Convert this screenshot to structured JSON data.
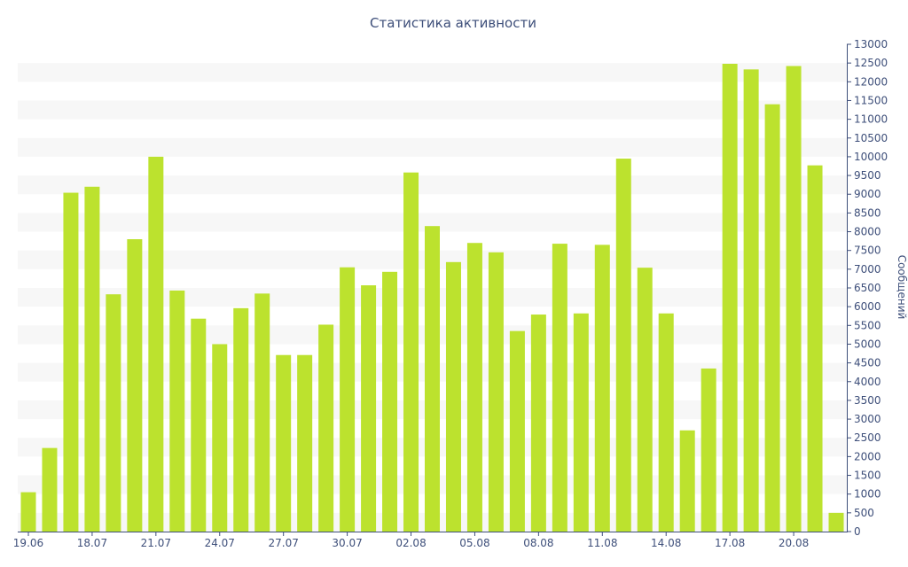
{
  "chart_data": {
    "type": "bar",
    "title": "Статистика активности",
    "ylabel": "Сообщений",
    "ylim": [
      0,
      13000
    ],
    "y_ticks": [
      0,
      500,
      1000,
      1500,
      2000,
      2500,
      3000,
      3500,
      4000,
      4500,
      5000,
      5500,
      6000,
      6500,
      7000,
      7500,
      8000,
      8500,
      9000,
      9500,
      10000,
      10500,
      11000,
      11500,
      12000,
      12500,
      13000
    ],
    "y_axis_position": "right",
    "grid": "horizontal-bands",
    "x_tick_labels": [
      "19.06",
      "18.07",
      "21.07",
      "24.07",
      "27.07",
      "30.07",
      "02.08",
      "05.08",
      "08.08",
      "11.08",
      "14.08",
      "17.08",
      "20.08"
    ],
    "x_tick_bar_index": [
      0,
      3,
      6,
      9,
      12,
      15,
      18,
      21,
      24,
      27,
      30,
      33,
      36
    ],
    "bar_color": "#bce22e",
    "text_color": "#3e4f7a",
    "band_color": "#f7f7f7",
    "values": [
      1050,
      2230,
      9040,
      9200,
      6330,
      7800,
      10000,
      6430,
      5680,
      5000,
      5960,
      6350,
      4710,
      4710,
      5520,
      7050,
      6570,
      6930,
      9580,
      8150,
      7190,
      7700,
      7450,
      5350,
      5790,
      7680,
      5820,
      7650,
      9950,
      7040,
      5820,
      2700,
      4350,
      12480,
      12330,
      11400,
      12420,
      9770,
      500
    ]
  }
}
